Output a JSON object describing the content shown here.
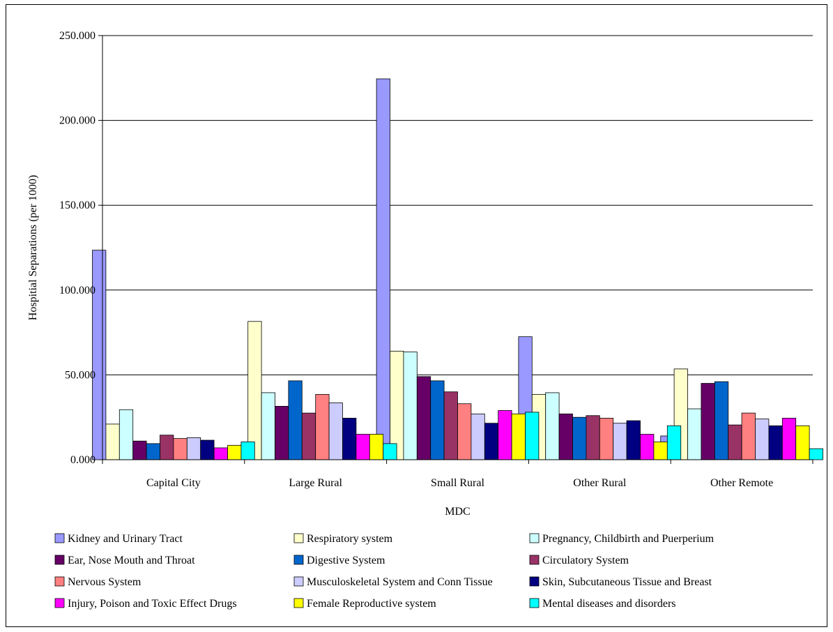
{
  "chart_data": {
    "type": "bar",
    "title": "",
    "xlabel": "MDC",
    "ylabel": "Hospitial Separations (per 1000)",
    "ylim": [
      0,
      250
    ],
    "yticks": [
      "0.000",
      "50.000",
      "100.000",
      "150.000",
      "200.000",
      "250.000"
    ],
    "grid": true,
    "legend_position": "bottom",
    "categories": [
      "Capital City",
      "Large Rural",
      "Small Rural",
      "Other Rural",
      "Other Remote"
    ],
    "series": [
      {
        "name": "Kidney and Urinary Tract",
        "color": "#9999ff",
        "values": [
          123.5,
          7.5,
          224.5,
          72.5,
          14.0
        ]
      },
      {
        "name": "Respiratory system",
        "color": "#ffffcc",
        "values": [
          21.0,
          81.5,
          64.0,
          38.5,
          53.5
        ]
      },
      {
        "name": "Pregnancy, Childbirth and Puerperium",
        "color": "#ccffff",
        "values": [
          29.5,
          39.5,
          63.5,
          39.5,
          30.0
        ]
      },
      {
        "name": "Ear, Nose Mouth and Throat",
        "color": "#660066",
        "values": [
          11.0,
          31.5,
          49.0,
          27.0,
          45.0
        ]
      },
      {
        "name": "Digestive System",
        "color": "#0066cc",
        "values": [
          9.5,
          46.5,
          46.5,
          25.0,
          46.0
        ]
      },
      {
        "name": "Circulatory System",
        "color": "#993366",
        "values": [
          14.5,
          27.5,
          40.0,
          26.0,
          20.5
        ]
      },
      {
        "name": "Nervous System",
        "color": "#ff8080",
        "values": [
          12.5,
          38.5,
          33.0,
          24.5,
          27.5
        ]
      },
      {
        "name": "Musculoskeletal System and Conn Tissue",
        "color": "#ccccff",
        "values": [
          13.0,
          33.5,
          27.0,
          21.5,
          24.0
        ]
      },
      {
        "name": "Skin, Subcutaneous Tissue and Breast",
        "color": "#000080",
        "values": [
          11.5,
          24.5,
          21.5,
          23.0,
          20.0
        ]
      },
      {
        "name": "Injury, Poison and Toxic Effect Drugs",
        "color": "#ff00ff",
        "values": [
          7.0,
          15.0,
          29.0,
          15.0,
          24.5
        ]
      },
      {
        "name": "Female Reproductive system",
        "color": "#ffff00",
        "values": [
          8.5,
          15.0,
          27.0,
          10.5,
          20.0
        ]
      },
      {
        "name": "Mental diseases and disorders",
        "color": "#00ffff",
        "values": [
          10.5,
          9.5,
          28.0,
          20.0,
          6.5
        ]
      }
    ]
  }
}
